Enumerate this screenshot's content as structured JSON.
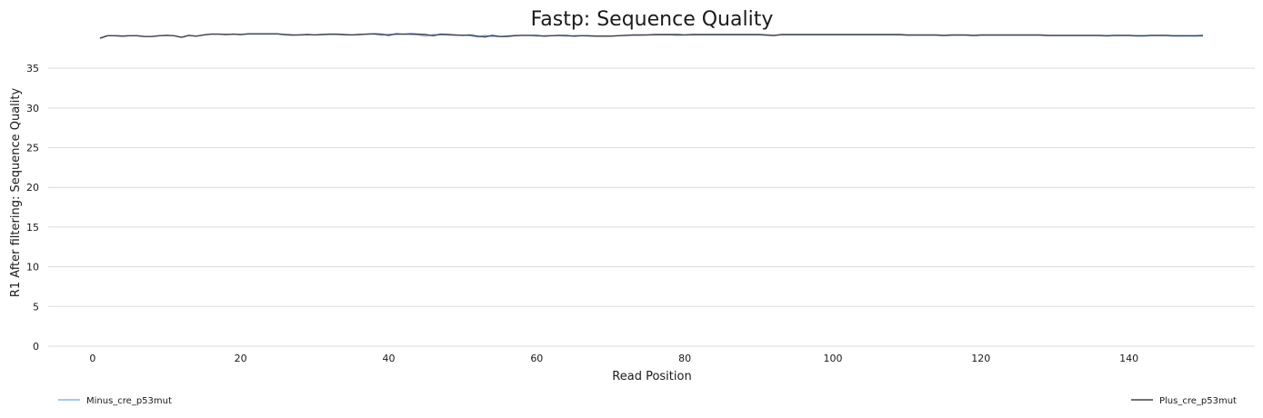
{
  "chart_data": {
    "type": "line",
    "title": "Fastp: Sequence Quality",
    "xlabel": "Read Position",
    "ylabel": "R1 After filtering: Sequence Quality",
    "xlim": [
      -6,
      157
    ],
    "ylim": [
      0,
      40
    ],
    "x_ticks": [
      "0",
      "20",
      "40",
      "60",
      "80",
      "100",
      "120",
      "140"
    ],
    "y_ticks": [
      "0",
      "5",
      "10",
      "15",
      "20",
      "25",
      "30",
      "35"
    ],
    "grid": true,
    "legend": "bottom",
    "series": [
      {
        "name": "Minus_cre_p53mut",
        "color": "#8ab4f0",
        "x": [
          1,
          2,
          3,
          4,
          5,
          6,
          7,
          8,
          9,
          10,
          11,
          12,
          13,
          14,
          15,
          16,
          17,
          18,
          19,
          20,
          21,
          22,
          23,
          24,
          25,
          26,
          27,
          28,
          29,
          30,
          31,
          32,
          33,
          34,
          35,
          36,
          37,
          38,
          39,
          40,
          41,
          42,
          43,
          44,
          45,
          46,
          47,
          48,
          49,
          50,
          51,
          52,
          53,
          54,
          55,
          56,
          57,
          58,
          59,
          60,
          61,
          62,
          63,
          64,
          65,
          66,
          67,
          68,
          69,
          70,
          71,
          72,
          73,
          74,
          75,
          76,
          77,
          78,
          79,
          80,
          81,
          82,
          83,
          84,
          85,
          86,
          87,
          88,
          89,
          90,
          91,
          92,
          93,
          94,
          95,
          96,
          97,
          98,
          99,
          100,
          101,
          102,
          103,
          104,
          105,
          106,
          107,
          108,
          109,
          110,
          111,
          112,
          113,
          114,
          115,
          116,
          117,
          118,
          119,
          120,
          121,
          122,
          123,
          124,
          125,
          126,
          127,
          128,
          129,
          130,
          131,
          132,
          133,
          134,
          135,
          136,
          137,
          138,
          139,
          140,
          141,
          142,
          143,
          144,
          145,
          146,
          147,
          148,
          149,
          150
        ],
        "values": [
          38.75,
          39.1,
          39.1,
          39.05,
          39.1,
          39.1,
          39.0,
          39.0,
          39.1,
          39.15,
          39.1,
          38.9,
          39.15,
          39.05,
          39.2,
          39.3,
          39.3,
          39.25,
          39.3,
          39.25,
          39.3,
          39.3,
          39.3,
          39.3,
          39.3,
          39.2,
          39.15,
          39.2,
          39.25,
          39.2,
          39.25,
          39.25,
          39.25,
          39.2,
          39.2,
          39.25,
          39.3,
          39.3,
          39.15,
          39.3,
          39.25,
          39.3,
          39.25,
          39.2,
          39.05,
          39.25,
          39.2,
          39.2,
          39.15,
          39.2,
          39.1,
          38.95,
          39.15,
          39.0,
          39.0,
          39.1,
          39.15,
          39.15,
          39.15,
          39.05,
          39.1,
          39.1,
          39.1,
          39.05,
          39.1,
          39.1,
          39.05,
          39.05,
          39.05,
          39.05,
          39.1,
          39.15,
          39.15,
          39.15,
          39.2,
          39.2,
          39.2,
          39.2,
          39.15,
          39.2,
          39.2,
          39.2,
          39.2,
          39.2,
          39.2,
          39.2,
          39.2,
          39.2,
          39.2,
          39.2,
          39.15,
          39.1,
          39.2,
          39.2,
          39.2,
          39.2,
          39.2,
          39.2,
          39.2,
          39.2,
          39.2,
          39.2,
          39.2,
          39.2,
          39.2,
          39.2,
          39.2,
          39.2,
          39.2,
          39.15,
          39.15,
          39.15,
          39.15,
          39.15,
          39.1,
          39.15,
          39.15,
          39.15,
          39.1,
          39.15,
          39.15,
          39.15,
          39.15,
          39.15,
          39.15,
          39.15,
          39.15,
          39.15,
          39.1,
          39.1,
          39.1,
          39.1,
          39.1,
          39.1,
          39.1,
          39.1,
          39.05,
          39.1,
          39.1,
          39.1,
          39.05,
          39.05,
          39.1,
          39.1,
          39.1,
          39.05,
          39.05,
          39.05,
          39.05,
          39.05
        ]
      },
      {
        "name": "Plus_cre_p53mut",
        "color": "#434348",
        "x": [
          1,
          2,
          3,
          4,
          5,
          6,
          7,
          8,
          9,
          10,
          11,
          12,
          13,
          14,
          15,
          16,
          17,
          18,
          19,
          20,
          21,
          22,
          23,
          24,
          25,
          26,
          27,
          28,
          29,
          30,
          31,
          32,
          33,
          34,
          35,
          36,
          37,
          38,
          39,
          40,
          41,
          42,
          43,
          44,
          45,
          46,
          47,
          48,
          49,
          50,
          51,
          52,
          53,
          54,
          55,
          56,
          57,
          58,
          59,
          60,
          61,
          62,
          63,
          64,
          65,
          66,
          67,
          68,
          69,
          70,
          71,
          72,
          73,
          74,
          75,
          76,
          77,
          78,
          79,
          80,
          81,
          82,
          83,
          84,
          85,
          86,
          87,
          88,
          89,
          90,
          91,
          92,
          93,
          94,
          95,
          96,
          97,
          98,
          99,
          100,
          101,
          102,
          103,
          104,
          105,
          106,
          107,
          108,
          109,
          110,
          111,
          112,
          113,
          114,
          115,
          116,
          117,
          118,
          119,
          120,
          121,
          122,
          123,
          124,
          125,
          126,
          127,
          128,
          129,
          130,
          131,
          132,
          133,
          134,
          135,
          136,
          137,
          138,
          139,
          140,
          141,
          142,
          143,
          144,
          145,
          146,
          147,
          148,
          149,
          150
        ],
        "values": [
          38.8,
          39.1,
          39.1,
          39.05,
          39.1,
          39.1,
          39.0,
          39.0,
          39.1,
          39.15,
          39.1,
          38.9,
          39.15,
          39.05,
          39.2,
          39.3,
          39.3,
          39.25,
          39.3,
          39.25,
          39.35,
          39.35,
          39.35,
          39.35,
          39.35,
          39.25,
          39.2,
          39.2,
          39.25,
          39.2,
          39.25,
          39.3,
          39.3,
          39.25,
          39.2,
          39.25,
          39.3,
          39.35,
          39.3,
          39.15,
          39.35,
          39.3,
          39.35,
          39.3,
          39.25,
          39.1,
          39.3,
          39.25,
          39.2,
          39.15,
          39.2,
          39.05,
          38.95,
          39.15,
          39.0,
          39.0,
          39.1,
          39.15,
          39.15,
          39.15,
          39.05,
          39.1,
          39.15,
          39.15,
          39.05,
          39.1,
          39.1,
          39.05,
          39.05,
          39.05,
          39.1,
          39.15,
          39.2,
          39.2,
          39.2,
          39.25,
          39.25,
          39.25,
          39.25,
          39.2,
          39.25,
          39.25,
          39.25,
          39.25,
          39.25,
          39.25,
          39.25,
          39.25,
          39.25,
          39.25,
          39.2,
          39.15,
          39.25,
          39.25,
          39.25,
          39.25,
          39.25,
          39.25,
          39.25,
          39.25,
          39.25,
          39.25,
          39.25,
          39.25,
          39.25,
          39.25,
          39.25,
          39.25,
          39.25,
          39.2,
          39.2,
          39.2,
          39.2,
          39.2,
          39.15,
          39.2,
          39.2,
          39.2,
          39.15,
          39.2,
          39.2,
          39.2,
          39.2,
          39.2,
          39.2,
          39.2,
          39.2,
          39.2,
          39.15,
          39.15,
          39.15,
          39.15,
          39.15,
          39.15,
          39.15,
          39.15,
          39.1,
          39.15,
          39.15,
          39.15,
          39.1,
          39.1,
          39.15,
          39.15,
          39.15,
          39.1,
          39.1,
          39.1,
          39.1,
          39.15
        ]
      }
    ]
  }
}
